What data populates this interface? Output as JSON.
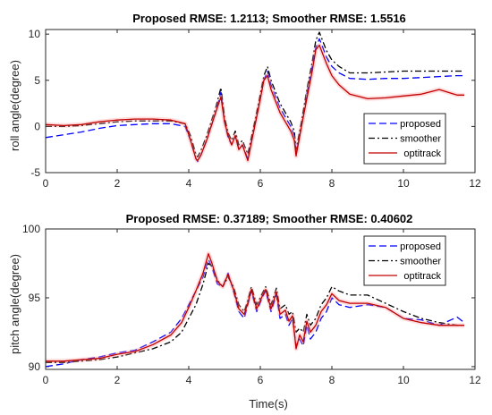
{
  "chart_data": [
    {
      "type": "line",
      "title": "Proposed RMSE: 1.2113; Smoother RMSE: 1.5516",
      "xlabel": "",
      "ylabel": "roll angle(degree)",
      "xlim": [
        0,
        12
      ],
      "ylim": [
        -5,
        10.5
      ],
      "xticks": [
        0,
        2,
        4,
        6,
        8,
        10,
        12
      ],
      "yticks": [
        -5,
        0,
        5,
        10
      ],
      "legend_position": "bottom-right",
      "series": [
        {
          "name": "proposed",
          "color": "#0000ff",
          "style": "dashed",
          "x": [
            0,
            0.5,
            1,
            1.5,
            2,
            2.5,
            3,
            3.5,
            3.9,
            4.05,
            4.2,
            4.25,
            4.35,
            4.5,
            4.75,
            4.9,
            5.0,
            5.1,
            5.2,
            5.3,
            5.4,
            5.5,
            5.65,
            5.8,
            5.95,
            6.1,
            6.2,
            6.3,
            6.45,
            6.55,
            6.7,
            6.85,
            6.95,
            7.0,
            7.15,
            7.3,
            7.45,
            7.55,
            7.65,
            7.75,
            7.85,
            8.0,
            8.2,
            8.5,
            9,
            9.5,
            10,
            10.5,
            11,
            11.5,
            11.7
          ],
          "y": [
            -1.2,
            -0.9,
            -0.6,
            -0.2,
            0.1,
            0.2,
            0.3,
            0.3,
            0.0,
            -1.5,
            -3.5,
            -3.8,
            -3.0,
            -1.5,
            1.5,
            3.7,
            0.5,
            -1.2,
            -2.0,
            -1.0,
            -2.5,
            -2.0,
            -3.5,
            -0.8,
            2.0,
            5.0,
            6.0,
            4.5,
            3.0,
            2.0,
            1.0,
            0.0,
            -1.0,
            -3.0,
            0.0,
            3.5,
            6.5,
            8.5,
            9.5,
            8.5,
            7.5,
            6.5,
            5.8,
            5.2,
            5.1,
            5.2,
            5.2,
            5.3,
            5.4,
            5.5,
            5.5
          ]
        },
        {
          "name": "smoother",
          "color": "#000000",
          "style": "dashdot",
          "x": [
            0,
            0.5,
            1,
            1.5,
            2,
            2.5,
            3,
            3.5,
            3.9,
            4.05,
            4.2,
            4.25,
            4.35,
            4.5,
            4.75,
            4.9,
            5.0,
            5.1,
            5.2,
            5.3,
            5.4,
            5.5,
            5.65,
            5.8,
            5.95,
            6.1,
            6.2,
            6.3,
            6.45,
            6.55,
            6.7,
            6.85,
            6.95,
            7.0,
            7.15,
            7.3,
            7.45,
            7.55,
            7.65,
            7.75,
            7.85,
            8.0,
            8.2,
            8.5,
            9,
            9.5,
            10,
            10.5,
            11,
            11.5,
            11.7
          ],
          "y": [
            0.0,
            0.0,
            0.1,
            0.3,
            0.5,
            0.6,
            0.6,
            0.6,
            0.3,
            -1.0,
            -3.0,
            -3.3,
            -2.5,
            -1.0,
            2.0,
            4.2,
            1.0,
            -0.7,
            -1.5,
            -0.5,
            -2.0,
            -1.5,
            -3.0,
            -0.3,
            2.5,
            5.5,
            6.5,
            5.0,
            3.5,
            2.5,
            1.5,
            0.5,
            -0.5,
            -2.5,
            0.5,
            4.0,
            7.0,
            9.3,
            10.2,
            9.2,
            8.2,
            7.2,
            6.5,
            5.8,
            5.8,
            5.9,
            6.0,
            6.0,
            6.0,
            6.0,
            6.0
          ]
        },
        {
          "name": "optitrack",
          "color": "#c00000",
          "style": "solid",
          "x": [
            0,
            0.5,
            1,
            1.5,
            2,
            2.5,
            3,
            3.5,
            3.9,
            4.05,
            4.2,
            4.25,
            4.35,
            4.5,
            4.75,
            4.9,
            5.0,
            5.1,
            5.2,
            5.3,
            5.4,
            5.5,
            5.65,
            5.8,
            5.95,
            6.1,
            6.2,
            6.3,
            6.45,
            6.55,
            6.7,
            6.85,
            6.95,
            7.0,
            7.15,
            7.3,
            7.45,
            7.55,
            7.65,
            7.75,
            7.85,
            8.0,
            8.2,
            8.5,
            9,
            9.5,
            10,
            10.5,
            11,
            11.5,
            11.7
          ],
          "y": [
            0.2,
            0.1,
            0.2,
            0.5,
            0.7,
            0.8,
            0.8,
            0.7,
            0.3,
            -1.5,
            -3.5,
            -3.7,
            -3.0,
            -1.5,
            1.5,
            3.2,
            0.5,
            -1.0,
            -2.0,
            -1.0,
            -2.5,
            -2.0,
            -3.7,
            -0.8,
            2.0,
            5.0,
            5.5,
            4.0,
            2.5,
            1.5,
            0.5,
            -0.5,
            -1.5,
            -3.2,
            0.0,
            3.0,
            6.0,
            8.3,
            8.8,
            7.8,
            6.8,
            5.5,
            4.5,
            3.5,
            3.0,
            3.1,
            3.3,
            3.5,
            4.0,
            3.4,
            3.4
          ]
        }
      ]
    },
    {
      "type": "line",
      "title": "Proposed RMSE: 0.37189; Smoother RMSE: 0.40602",
      "xlabel": "Time(s)",
      "ylabel": "pitch angle(degree)",
      "xlim": [
        0,
        12
      ],
      "ylim": [
        89.8,
        100
      ],
      "xticks": [
        0,
        2,
        4,
        6,
        8,
        10,
        12
      ],
      "yticks": [
        90,
        95,
        100
      ],
      "legend_position": "top-right",
      "series": [
        {
          "name": "proposed",
          "color": "#0000ff",
          "style": "dashed",
          "x": [
            0,
            0.5,
            1,
            1.5,
            2,
            2.5,
            3,
            3.5,
            3.8,
            4.0,
            4.2,
            4.4,
            4.55,
            4.65,
            4.8,
            4.95,
            5.1,
            5.25,
            5.4,
            5.55,
            5.65,
            5.75,
            5.9,
            6.05,
            6.15,
            6.3,
            6.45,
            6.55,
            6.7,
            6.8,
            6.9,
            7.0,
            7.1,
            7.2,
            7.3,
            7.4,
            7.55,
            7.7,
            7.85,
            8.0,
            8.2,
            8.5,
            9,
            9.5,
            10,
            10.5,
            11,
            11.5,
            11.7
          ],
          "y": [
            90.0,
            90.2,
            90.5,
            90.7,
            91.0,
            91.2,
            91.8,
            92.5,
            93.5,
            94.5,
            95.5,
            96.5,
            97.8,
            97.2,
            96.0,
            95.8,
            96.8,
            95.5,
            94.0,
            93.5,
            94.5,
            95.5,
            94.0,
            95.0,
            95.5,
            94.0,
            95.2,
            93.5,
            93.8,
            93.0,
            93.5,
            91.5,
            92.0,
            91.5,
            93.0,
            92.0,
            92.5,
            93.5,
            94.0,
            95.0,
            94.5,
            94.3,
            94.5,
            94.3,
            93.5,
            93.4,
            93.0,
            93.6,
            93.2
          ]
        },
        {
          "name": "smoother",
          "color": "#000000",
          "style": "dashdot",
          "x": [
            0,
            0.5,
            1,
            1.5,
            2,
            2.5,
            3,
            3.5,
            3.8,
            4.0,
            4.2,
            4.4,
            4.55,
            4.65,
            4.8,
            4.95,
            5.1,
            5.25,
            5.4,
            5.55,
            5.65,
            5.75,
            5.9,
            6.05,
            6.15,
            6.3,
            6.45,
            6.55,
            6.7,
            6.8,
            6.9,
            7.0,
            7.1,
            7.2,
            7.3,
            7.4,
            7.55,
            7.7,
            7.85,
            8.0,
            8.2,
            8.5,
            9,
            9.5,
            10,
            10.5,
            11,
            11.5,
            11.7
          ],
          "y": [
            90.3,
            90.3,
            90.4,
            90.5,
            90.7,
            91.0,
            91.3,
            91.8,
            92.5,
            93.5,
            94.5,
            96.0,
            97.5,
            97.3,
            96.3,
            95.8,
            96.5,
            95.8,
            94.5,
            94.0,
            94.8,
            95.8,
            94.5,
            95.3,
            95.8,
            94.5,
            95.7,
            94.2,
            94.5,
            93.8,
            94.0,
            92.5,
            92.8,
            92.5,
            93.8,
            93.0,
            93.5,
            94.5,
            95.0,
            95.8,
            95.5,
            95.2,
            95.2,
            94.6,
            94.0,
            93.5,
            93.2,
            93.0,
            93.0
          ]
        },
        {
          "name": "optitrack",
          "color": "#c00000",
          "style": "solid",
          "x": [
            0,
            0.5,
            1,
            1.5,
            2,
            2.5,
            3,
            3.5,
            3.8,
            4.0,
            4.2,
            4.4,
            4.55,
            4.65,
            4.8,
            4.95,
            5.1,
            5.25,
            5.4,
            5.55,
            5.65,
            5.75,
            5.9,
            6.05,
            6.15,
            6.3,
            6.45,
            6.55,
            6.7,
            6.8,
            6.9,
            7.0,
            7.1,
            7.2,
            7.3,
            7.4,
            7.55,
            7.7,
            7.85,
            8.0,
            8.2,
            8.5,
            9,
            9.5,
            10,
            10.5,
            11,
            11.5,
            11.7
          ],
          "y": [
            90.4,
            90.4,
            90.5,
            90.6,
            90.9,
            91.1,
            91.6,
            92.3,
            93.2,
            94.3,
            95.5,
            96.8,
            98.2,
            97.5,
            96.2,
            95.8,
            96.7,
            95.6,
            94.2,
            93.8,
            94.6,
            95.6,
            94.2,
            95.1,
            95.6,
            94.2,
            95.4,
            93.8,
            94.1,
            93.3,
            93.7,
            91.3,
            92.3,
            91.8,
            93.3,
            92.5,
            93.0,
            94.0,
            94.5,
            95.3,
            94.8,
            94.6,
            94.6,
            94.3,
            93.5,
            93.2,
            93.0,
            93.0,
            93.0
          ]
        }
      ]
    }
  ]
}
